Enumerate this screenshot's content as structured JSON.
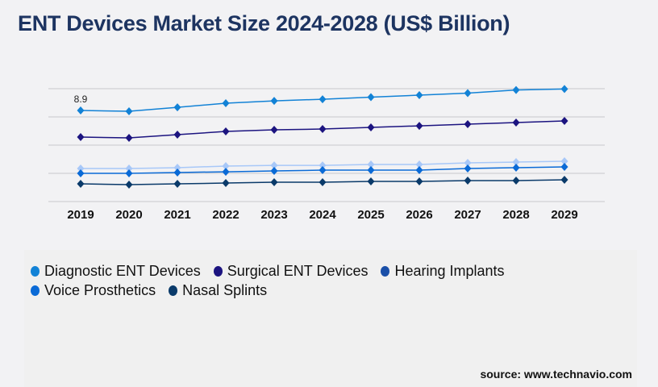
{
  "title": "ENT Devices Market Size 2024-2028 (US$ Billion)",
  "source": "source: www.technavio.com",
  "chart_data": {
    "type": "line",
    "title": "ENT Devices Market Size 2024-2028 (US$ Billion)",
    "xlabel": "",
    "ylabel": "",
    "categories": [
      "2019",
      "2020",
      "2021",
      "2022",
      "2023",
      "2024",
      "2025",
      "2026",
      "2027",
      "2028",
      "2029"
    ],
    "ylim": [
      0,
      11.03
    ],
    "grid": true,
    "legend": "bottom",
    "annotations": [
      {
        "series": "Diagnostic ENT Devices",
        "x": "2019",
        "text": "8.9"
      }
    ],
    "series": [
      {
        "name": "Diagnostic ENT Devices",
        "color": "#1282d6",
        "line_color": "#1282d6",
        "values": [
          8.9,
          8.82,
          9.21,
          9.61,
          9.84,
          10.0,
          10.2,
          10.4,
          10.6,
          10.9,
          11.0
        ]
      },
      {
        "name": "Surgical ENT Devices",
        "color": "#1c1480",
        "line_color": "#1c1480",
        "values": [
          6.3,
          6.22,
          6.54,
          6.85,
          7.01,
          7.09,
          7.25,
          7.4,
          7.56,
          7.72,
          7.88
        ]
      },
      {
        "name": "Hearing Implants",
        "color": "#1a4fa8",
        "line_color": "#a8c8f8",
        "values": [
          3.23,
          3.23,
          3.31,
          3.47,
          3.54,
          3.54,
          3.62,
          3.62,
          3.78,
          3.86,
          3.94
        ]
      },
      {
        "name": "Voice Prosthetics",
        "color": "#0a6ad6",
        "line_color": "#0a6ad6",
        "values": [
          2.76,
          2.76,
          2.84,
          2.91,
          2.99,
          3.07,
          3.07,
          3.07,
          3.23,
          3.31,
          3.39
        ]
      },
      {
        "name": "Nasal Splints",
        "color": "#0a3a6a",
        "line_color": "#0a3a6a",
        "values": [
          1.73,
          1.65,
          1.73,
          1.81,
          1.89,
          1.89,
          1.97,
          1.97,
          2.05,
          2.05,
          2.13
        ]
      }
    ]
  }
}
